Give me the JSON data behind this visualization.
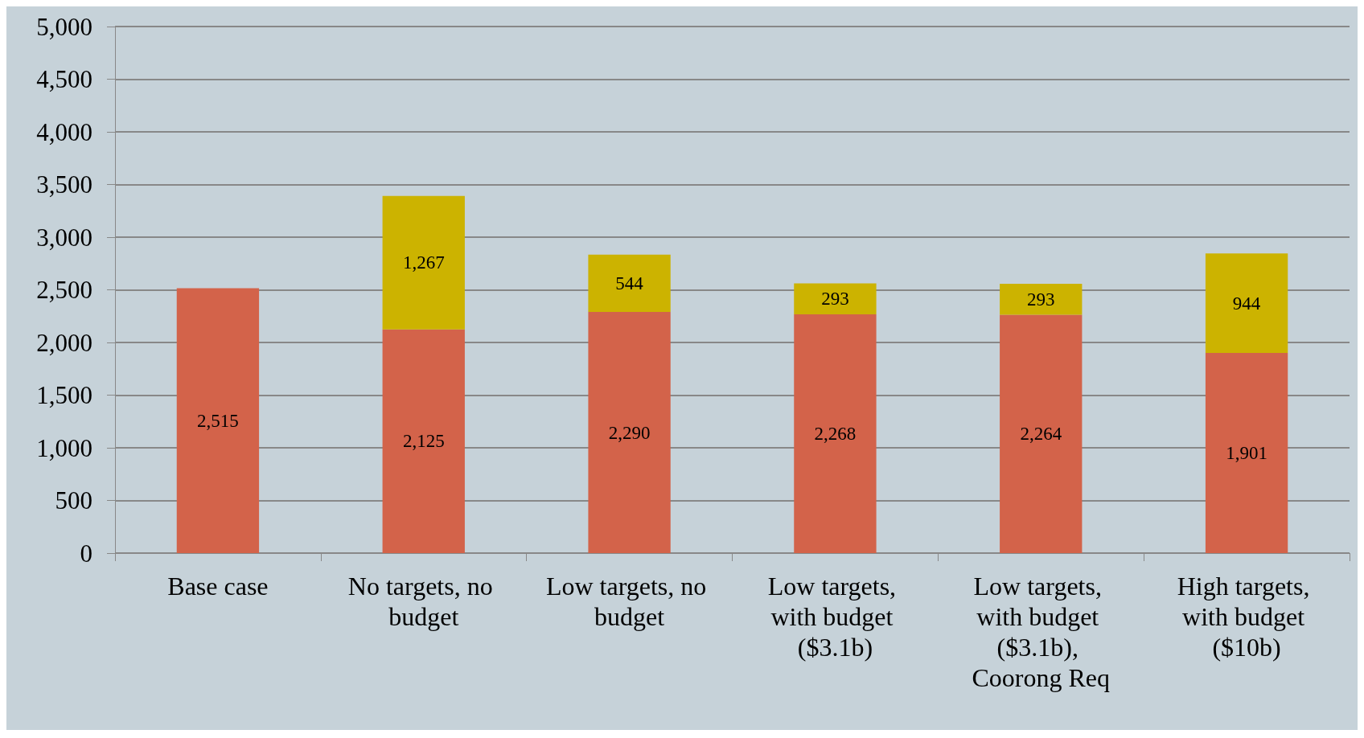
{
  "chart_data": {
    "type": "bar",
    "stacked": true,
    "grid": "y",
    "categories": [
      "Base case",
      "No targets, no budget",
      "Low targets, no budget",
      "Low targets, with budget ($3.1b)",
      "Low targets, with budget ($3.1b), Coorong Req",
      "High targets, with budget ($10b)"
    ],
    "series": [
      {
        "color": "#d3634a",
        "values": [
          2515,
          2125,
          2290,
          2268,
          2264,
          1901
        ],
        "value_labels": [
          "2,515",
          "2,125",
          "2,290",
          "2,268",
          "2,264",
          "1,901"
        ]
      },
      {
        "color": "#ccb300",
        "values": [
          null,
          1267,
          544,
          293,
          293,
          944
        ],
        "value_labels": [
          null,
          "1,267",
          "544",
          "293",
          "293",
          "944"
        ]
      }
    ],
    "ylim": [
      0,
      5000
    ],
    "yticks": [
      {
        "value": 0,
        "label": "0"
      },
      {
        "value": 500,
        "label": "500"
      },
      {
        "value": 1000,
        "label": "1,000"
      },
      {
        "value": 1500,
        "label": "1,500"
      },
      {
        "value": 2000,
        "label": "2,000"
      },
      {
        "value": 2500,
        "label": "2,500"
      },
      {
        "value": 3000,
        "label": "3,000"
      },
      {
        "value": 3500,
        "label": "3,500"
      },
      {
        "value": 4000,
        "label": "4,000"
      },
      {
        "value": 4500,
        "label": "4,500"
      },
      {
        "value": 5000,
        "label": "5,000"
      }
    ]
  }
}
